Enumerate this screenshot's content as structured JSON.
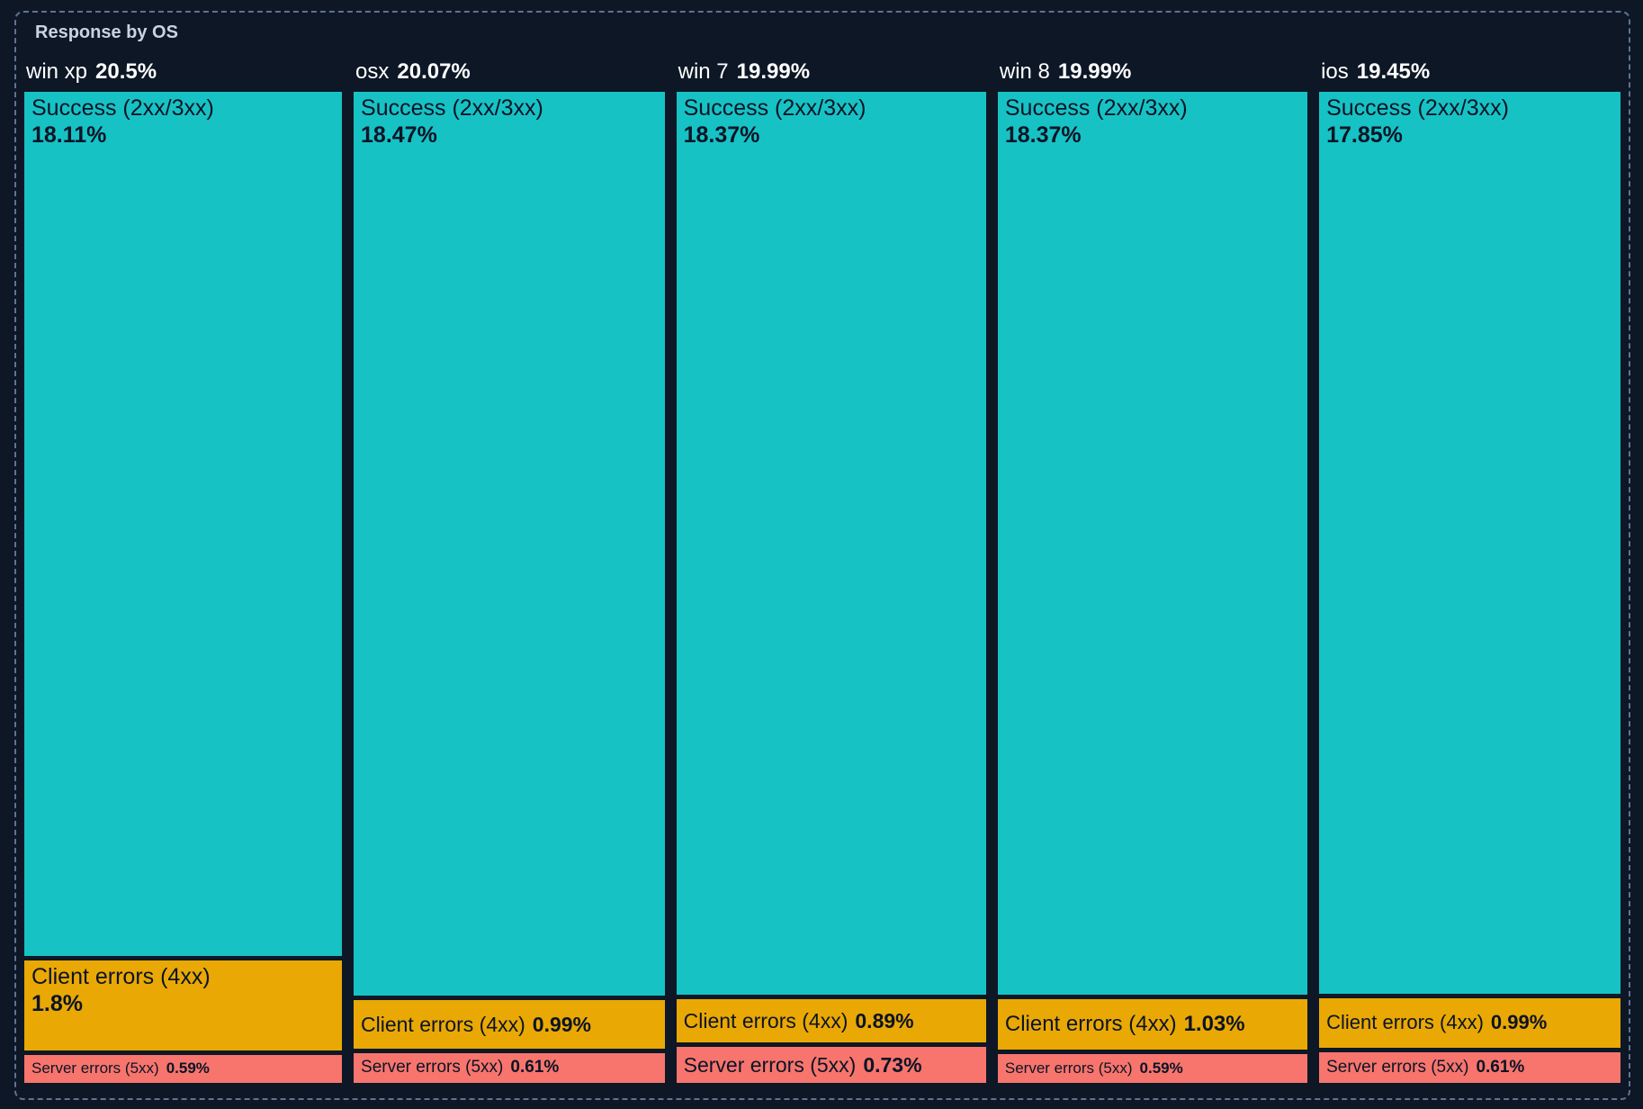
{
  "panel": {
    "title": "Response by OS"
  },
  "colors": {
    "background": "#0D1726",
    "success": "#17C2C4",
    "client_errors": "#E9A804",
    "server_errors": "#F7756D",
    "border_dashed": "#5F7290",
    "title_text": "#CBD3DE",
    "header_text": "#FFFFFF",
    "tile_text": "#0B1426"
  },
  "chart_data": {
    "type": "treemap",
    "title": "Response by OS",
    "units": "%",
    "categories": [
      "win xp",
      "osx",
      "win 7",
      "win 8",
      "ios"
    ],
    "totals": [
      20.5,
      20.07,
      19.99,
      19.99,
      19.45
    ],
    "series": [
      {
        "name": "Success (2xx/3xx)",
        "values": [
          18.11,
          18.47,
          18.37,
          18.37,
          17.85
        ]
      },
      {
        "name": "Client errors (4xx)",
        "values": [
          1.8,
          0.99,
          0.89,
          1.03,
          0.99
        ]
      },
      {
        "name": "Server errors (5xx)",
        "values": [
          0.59,
          0.61,
          0.73,
          0.59,
          0.61
        ]
      }
    ],
    "layout": {
      "orientation": "columns-by-category",
      "column_width_by": "totals",
      "segment_height_by": "values",
      "grid": false,
      "legend": "none"
    }
  },
  "groups": [
    {
      "name": "win xp",
      "pct": "20.5%",
      "total": 20.5,
      "success": {
        "label": "Success (2xx/3xx)",
        "pct": "18.11%",
        "value": 18.11
      },
      "client": {
        "label": "Client errors (4xx)",
        "pct": "1.8%",
        "value": 1.8
      },
      "server": {
        "label": "Server errors (5xx)",
        "pct": "0.59%",
        "value": 0.59
      }
    },
    {
      "name": "osx",
      "pct": "20.07%",
      "total": 20.07,
      "success": {
        "label": "Success (2xx/3xx)",
        "pct": "18.47%",
        "value": 18.47
      },
      "client": {
        "label": "Client errors (4xx)",
        "pct": "0.99%",
        "value": 0.99
      },
      "server": {
        "label": "Server errors (5xx)",
        "pct": "0.61%",
        "value": 0.61
      }
    },
    {
      "name": "win 7",
      "pct": "19.99%",
      "total": 19.99,
      "success": {
        "label": "Success (2xx/3xx)",
        "pct": "18.37%",
        "value": 18.37
      },
      "client": {
        "label": "Client errors (4xx)",
        "pct": "0.89%",
        "value": 0.89
      },
      "server": {
        "label": "Server errors (5xx)",
        "pct": "0.73%",
        "value": 0.73
      }
    },
    {
      "name": "win 8",
      "pct": "19.99%",
      "total": 19.99,
      "success": {
        "label": "Success (2xx/3xx)",
        "pct": "18.37%",
        "value": 18.37
      },
      "client": {
        "label": "Client errors (4xx)",
        "pct": "1.03%",
        "value": 1.03
      },
      "server": {
        "label": "Server errors (5xx)",
        "pct": "0.59%",
        "value": 0.59
      }
    },
    {
      "name": "ios",
      "pct": "19.45%",
      "total": 19.45,
      "success": {
        "label": "Success (2xx/3xx)",
        "pct": "17.85%",
        "value": 17.85
      },
      "client": {
        "label": "Client errors (4xx)",
        "pct": "0.99%",
        "value": 0.99
      },
      "server": {
        "label": "Server errors (5xx)",
        "pct": "0.61%",
        "value": 0.61
      }
    }
  ]
}
